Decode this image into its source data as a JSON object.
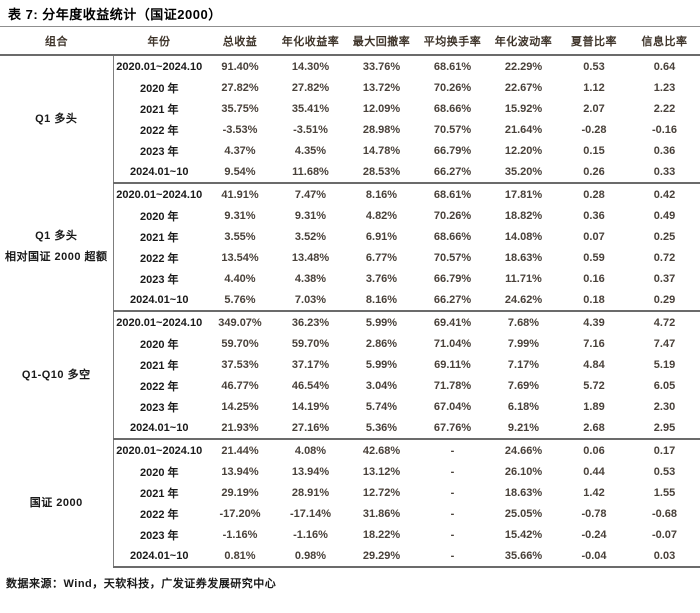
{
  "title": "表 7: 分年度收益统计（国证2000）",
  "source": "数据来源：Wind，天软科技，广发证券发展研究中心",
  "colors": {
    "header_text": "#3f352b",
    "value_text": "#49413a",
    "label_text": "#1a1a1a",
    "rule_thin": "#8f8f8f",
    "rule_thick": "#6b6b6b",
    "background": "#ffffff"
  },
  "table": {
    "headers": [
      "组合",
      "年份",
      "总收益",
      "年化收益率",
      "最大回撤率",
      "平均换手率",
      "年化波动率",
      "夏普比率",
      "信息比率"
    ],
    "groups": [
      {
        "label_lines": [
          "Q1 多头"
        ],
        "rows": [
          {
            "period": "2020.01~2024.10",
            "values": [
              "91.40%",
              "14.30%",
              "33.76%",
              "68.61%",
              "22.29%",
              "0.53",
              "0.64"
            ]
          },
          {
            "period": "2020 年",
            "values": [
              "27.82%",
              "27.82%",
              "13.72%",
              "70.26%",
              "22.67%",
              "1.12",
              "1.23"
            ]
          },
          {
            "period": "2021 年",
            "values": [
              "35.75%",
              "35.41%",
              "12.09%",
              "68.66%",
              "15.92%",
              "2.07",
              "2.22"
            ]
          },
          {
            "period": "2022 年",
            "values": [
              "-3.53%",
              "-3.51%",
              "28.98%",
              "70.57%",
              "21.64%",
              "-0.28",
              "-0.16"
            ]
          },
          {
            "period": "2023 年",
            "values": [
              "4.37%",
              "4.35%",
              "14.78%",
              "66.79%",
              "12.20%",
              "0.15",
              "0.36"
            ]
          },
          {
            "period": "2024.01~10",
            "values": [
              "9.54%",
              "11.68%",
              "28.53%",
              "66.27%",
              "35.20%",
              "0.26",
              "0.33"
            ]
          }
        ]
      },
      {
        "label_lines": [
          "Q1 多头",
          "相对国证 2000 超额"
        ],
        "rows": [
          {
            "period": "2020.01~2024.10",
            "values": [
              "41.91%",
              "7.47%",
              "8.16%",
              "68.61%",
              "17.81%",
              "0.28",
              "0.42"
            ]
          },
          {
            "period": "2020 年",
            "values": [
              "9.31%",
              "9.31%",
              "4.82%",
              "70.26%",
              "18.82%",
              "0.36",
              "0.49"
            ]
          },
          {
            "period": "2021 年",
            "values": [
              "3.55%",
              "3.52%",
              "6.91%",
              "68.66%",
              "14.08%",
              "0.07",
              "0.25"
            ]
          },
          {
            "period": "2022 年",
            "values": [
              "13.54%",
              "13.48%",
              "6.77%",
              "70.57%",
              "18.63%",
              "0.59",
              "0.72"
            ]
          },
          {
            "period": "2023 年",
            "values": [
              "4.40%",
              "4.38%",
              "3.76%",
              "66.79%",
              "11.71%",
              "0.16",
              "0.37"
            ]
          },
          {
            "period": "2024.01~10",
            "values": [
              "5.76%",
              "7.03%",
              "8.16%",
              "66.27%",
              "24.62%",
              "0.18",
              "0.29"
            ]
          }
        ]
      },
      {
        "label_lines": [
          "Q1-Q10 多空"
        ],
        "rows": [
          {
            "period": "2020.01~2024.10",
            "values": [
              "349.07%",
              "36.23%",
              "5.99%",
              "69.41%",
              "7.68%",
              "4.39",
              "4.72"
            ]
          },
          {
            "period": "2020 年",
            "values": [
              "59.70%",
              "59.70%",
              "2.86%",
              "71.04%",
              "7.99%",
              "7.16",
              "7.47"
            ]
          },
          {
            "period": "2021 年",
            "values": [
              "37.53%",
              "37.17%",
              "5.99%",
              "69.11%",
              "7.17%",
              "4.84",
              "5.19"
            ]
          },
          {
            "period": "2022 年",
            "values": [
              "46.77%",
              "46.54%",
              "3.04%",
              "71.78%",
              "7.69%",
              "5.72",
              "6.05"
            ]
          },
          {
            "period": "2023 年",
            "values": [
              "14.25%",
              "14.19%",
              "5.74%",
              "67.04%",
              "6.18%",
              "1.89",
              "2.30"
            ]
          },
          {
            "period": "2024.01~10",
            "values": [
              "21.93%",
              "27.16%",
              "5.36%",
              "67.76%",
              "9.21%",
              "2.68",
              "2.95"
            ]
          }
        ]
      },
      {
        "label_lines": [
          "国证 2000"
        ],
        "rows": [
          {
            "period": "2020.01~2024.10",
            "values": [
              "21.44%",
              "4.08%",
              "42.68%",
              "-",
              "24.66%",
              "0.06",
              "0.17"
            ]
          },
          {
            "period": "2020 年",
            "values": [
              "13.94%",
              "13.94%",
              "13.12%",
              "-",
              "26.10%",
              "0.44",
              "0.53"
            ]
          },
          {
            "period": "2021 年",
            "values": [
              "29.19%",
              "28.91%",
              "12.72%",
              "-",
              "18.63%",
              "1.42",
              "1.55"
            ]
          },
          {
            "period": "2022 年",
            "values": [
              "-17.20%",
              "-17.14%",
              "31.86%",
              "-",
              "25.05%",
              "-0.78",
              "-0.68"
            ]
          },
          {
            "period": "2023 年",
            "values": [
              "-1.16%",
              "-1.16%",
              "18.22%",
              "-",
              "15.42%",
              "-0.24",
              "-0.07"
            ]
          },
          {
            "period": "2024.01~10",
            "values": [
              "0.81%",
              "0.98%",
              "29.29%",
              "-",
              "35.66%",
              "-0.04",
              "0.03"
            ]
          }
        ]
      }
    ]
  }
}
